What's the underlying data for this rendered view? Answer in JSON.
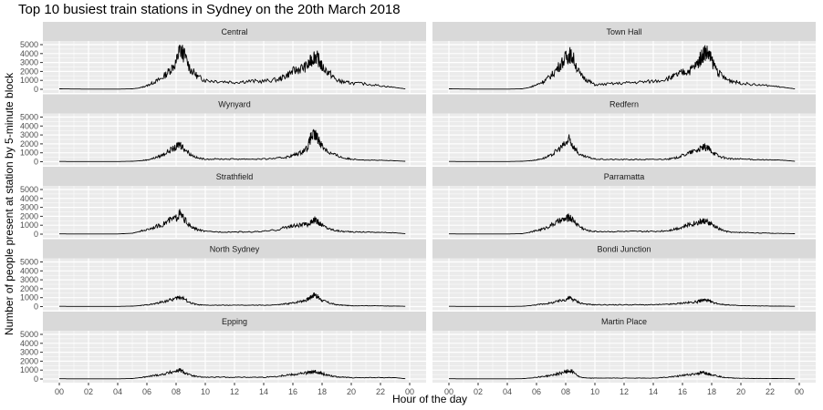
{
  "title": "Top 10 busiest train stations in Sydney on the 20th March 2018",
  "xlabel": "Hour of the day",
  "ylabel": "Number of people present at station by 5-minute block",
  "colors": {
    "panel_bg": "#ebebeb",
    "strip_bg": "#d9d9d9",
    "grid_major": "#ffffff",
    "line": "#000000"
  },
  "chart_data": {
    "type": "line",
    "title": "Top 10 busiest train stations in Sydney on the 20th March 2018",
    "xlabel": "Hour of the day",
    "ylabel": "Number of people present at station by 5-minute block",
    "x_ticks": [
      "00",
      "02",
      "04",
      "06",
      "08",
      "10",
      "12",
      "14",
      "16",
      "18",
      "20",
      "22",
      "00"
    ],
    "y_ticks": [
      0,
      1000,
      2000,
      3000,
      4000,
      5000
    ],
    "ylim": [
      0,
      5200
    ],
    "xlim_hours": [
      0,
      24
    ],
    "layout": "facet_wrap 5 rows x 2 cols, shared axes",
    "x": [
      0,
      1,
      2,
      3,
      4,
      5,
      5.5,
      6,
      6.5,
      7,
      7.5,
      8,
      8.25,
      8.5,
      9,
      9.5,
      10,
      11,
      12,
      13,
      14,
      15,
      15.5,
      16,
      16.5,
      17,
      17.25,
      17.5,
      17.75,
      18,
      18.5,
      19,
      19.5,
      20,
      21,
      22,
      23,
      23.7
    ],
    "series": [
      {
        "name": "Central",
        "values": [
          50,
          30,
          20,
          20,
          20,
          50,
          150,
          400,
          800,
          1200,
          2000,
          3000,
          4400,
          4000,
          2200,
          1400,
          1000,
          900,
          800,
          900,
          900,
          1100,
          1500,
          2000,
          2300,
          2600,
          3200,
          3800,
          3300,
          2500,
          1800,
          1000,
          800,
          700,
          600,
          400,
          200,
          50
        ]
      },
      {
        "name": "Town Hall",
        "values": [
          50,
          30,
          20,
          20,
          20,
          50,
          200,
          500,
          900,
          1500,
          2500,
          3500,
          3900,
          3500,
          1600,
          1000,
          500,
          600,
          700,
          800,
          900,
          1200,
          1500,
          1900,
          2100,
          2800,
          3500,
          4200,
          4000,
          3200,
          1800,
          1100,
          900,
          700,
          500,
          400,
          200,
          50
        ]
      },
      {
        "name": "Wynyard",
        "values": [
          30,
          20,
          20,
          20,
          20,
          50,
          100,
          200,
          400,
          700,
          1200,
          1600,
          2000,
          1600,
          800,
          400,
          300,
          300,
          300,
          300,
          300,
          400,
          500,
          700,
          1000,
          1600,
          2800,
          3000,
          2500,
          1800,
          1000,
          700,
          400,
          300,
          200,
          150,
          100,
          50
        ]
      },
      {
        "name": "Redfern",
        "values": [
          30,
          20,
          20,
          20,
          20,
          50,
          100,
          200,
          400,
          700,
          1400,
          2000,
          2500,
          1800,
          700,
          500,
          300,
          250,
          250,
          250,
          250,
          300,
          400,
          700,
          1000,
          1300,
          1500,
          1600,
          1500,
          1200,
          600,
          400,
          300,
          300,
          250,
          200,
          150,
          50
        ]
      },
      {
        "name": "Strathfield",
        "values": [
          30,
          20,
          20,
          20,
          20,
          100,
          300,
          500,
          800,
          1000,
          1500,
          1800,
          2300,
          1800,
          800,
          500,
          300,
          250,
          250,
          250,
          300,
          500,
          800,
          900,
          1000,
          1100,
          1300,
          1600,
          1300,
          1000,
          600,
          400,
          300,
          250,
          250,
          200,
          150,
          50
        ]
      },
      {
        "name": "Parramatta",
        "values": [
          30,
          20,
          20,
          20,
          20,
          50,
          200,
          400,
          600,
          1000,
          1400,
          1700,
          1900,
          1600,
          800,
          400,
          300,
          300,
          300,
          300,
          300,
          400,
          600,
          800,
          1100,
          1300,
          1400,
          1500,
          1300,
          1100,
          600,
          300,
          200,
          200,
          150,
          100,
          80,
          50
        ]
      },
      {
        "name": "North Sydney",
        "values": [
          30,
          20,
          20,
          20,
          20,
          50,
          100,
          200,
          300,
          500,
          700,
          900,
          1100,
          900,
          400,
          200,
          150,
          150,
          150,
          150,
          150,
          200,
          300,
          400,
          600,
          800,
          1100,
          1400,
          1000,
          700,
          400,
          200,
          150,
          100,
          100,
          80,
          60,
          30
        ]
      },
      {
        "name": "Bondi Junction",
        "values": [
          30,
          20,
          20,
          20,
          20,
          30,
          100,
          200,
          300,
          400,
          600,
          800,
          1000,
          800,
          400,
          250,
          200,
          200,
          200,
          200,
          200,
          250,
          300,
          400,
          450,
          550,
          650,
          750,
          650,
          500,
          300,
          200,
          150,
          100,
          80,
          60,
          40,
          30
        ]
      },
      {
        "name": "Epping",
        "values": [
          30,
          20,
          20,
          20,
          20,
          50,
          150,
          250,
          400,
          500,
          700,
          900,
          1000,
          800,
          400,
          250,
          200,
          200,
          200,
          200,
          200,
          300,
          450,
          500,
          600,
          700,
          750,
          800,
          750,
          600,
          400,
          250,
          200,
          150,
          150,
          150,
          150,
          30
        ]
      },
      {
        "name": "Martin Place",
        "values": [
          30,
          20,
          20,
          20,
          20,
          30,
          100,
          200,
          300,
          400,
          600,
          800,
          900,
          850,
          200,
          100,
          100,
          100,
          100,
          100,
          100,
          200,
          300,
          400,
          500,
          600,
          700,
          700,
          600,
          500,
          300,
          150,
          100,
          80,
          60,
          50,
          40,
          30
        ]
      }
    ]
  }
}
